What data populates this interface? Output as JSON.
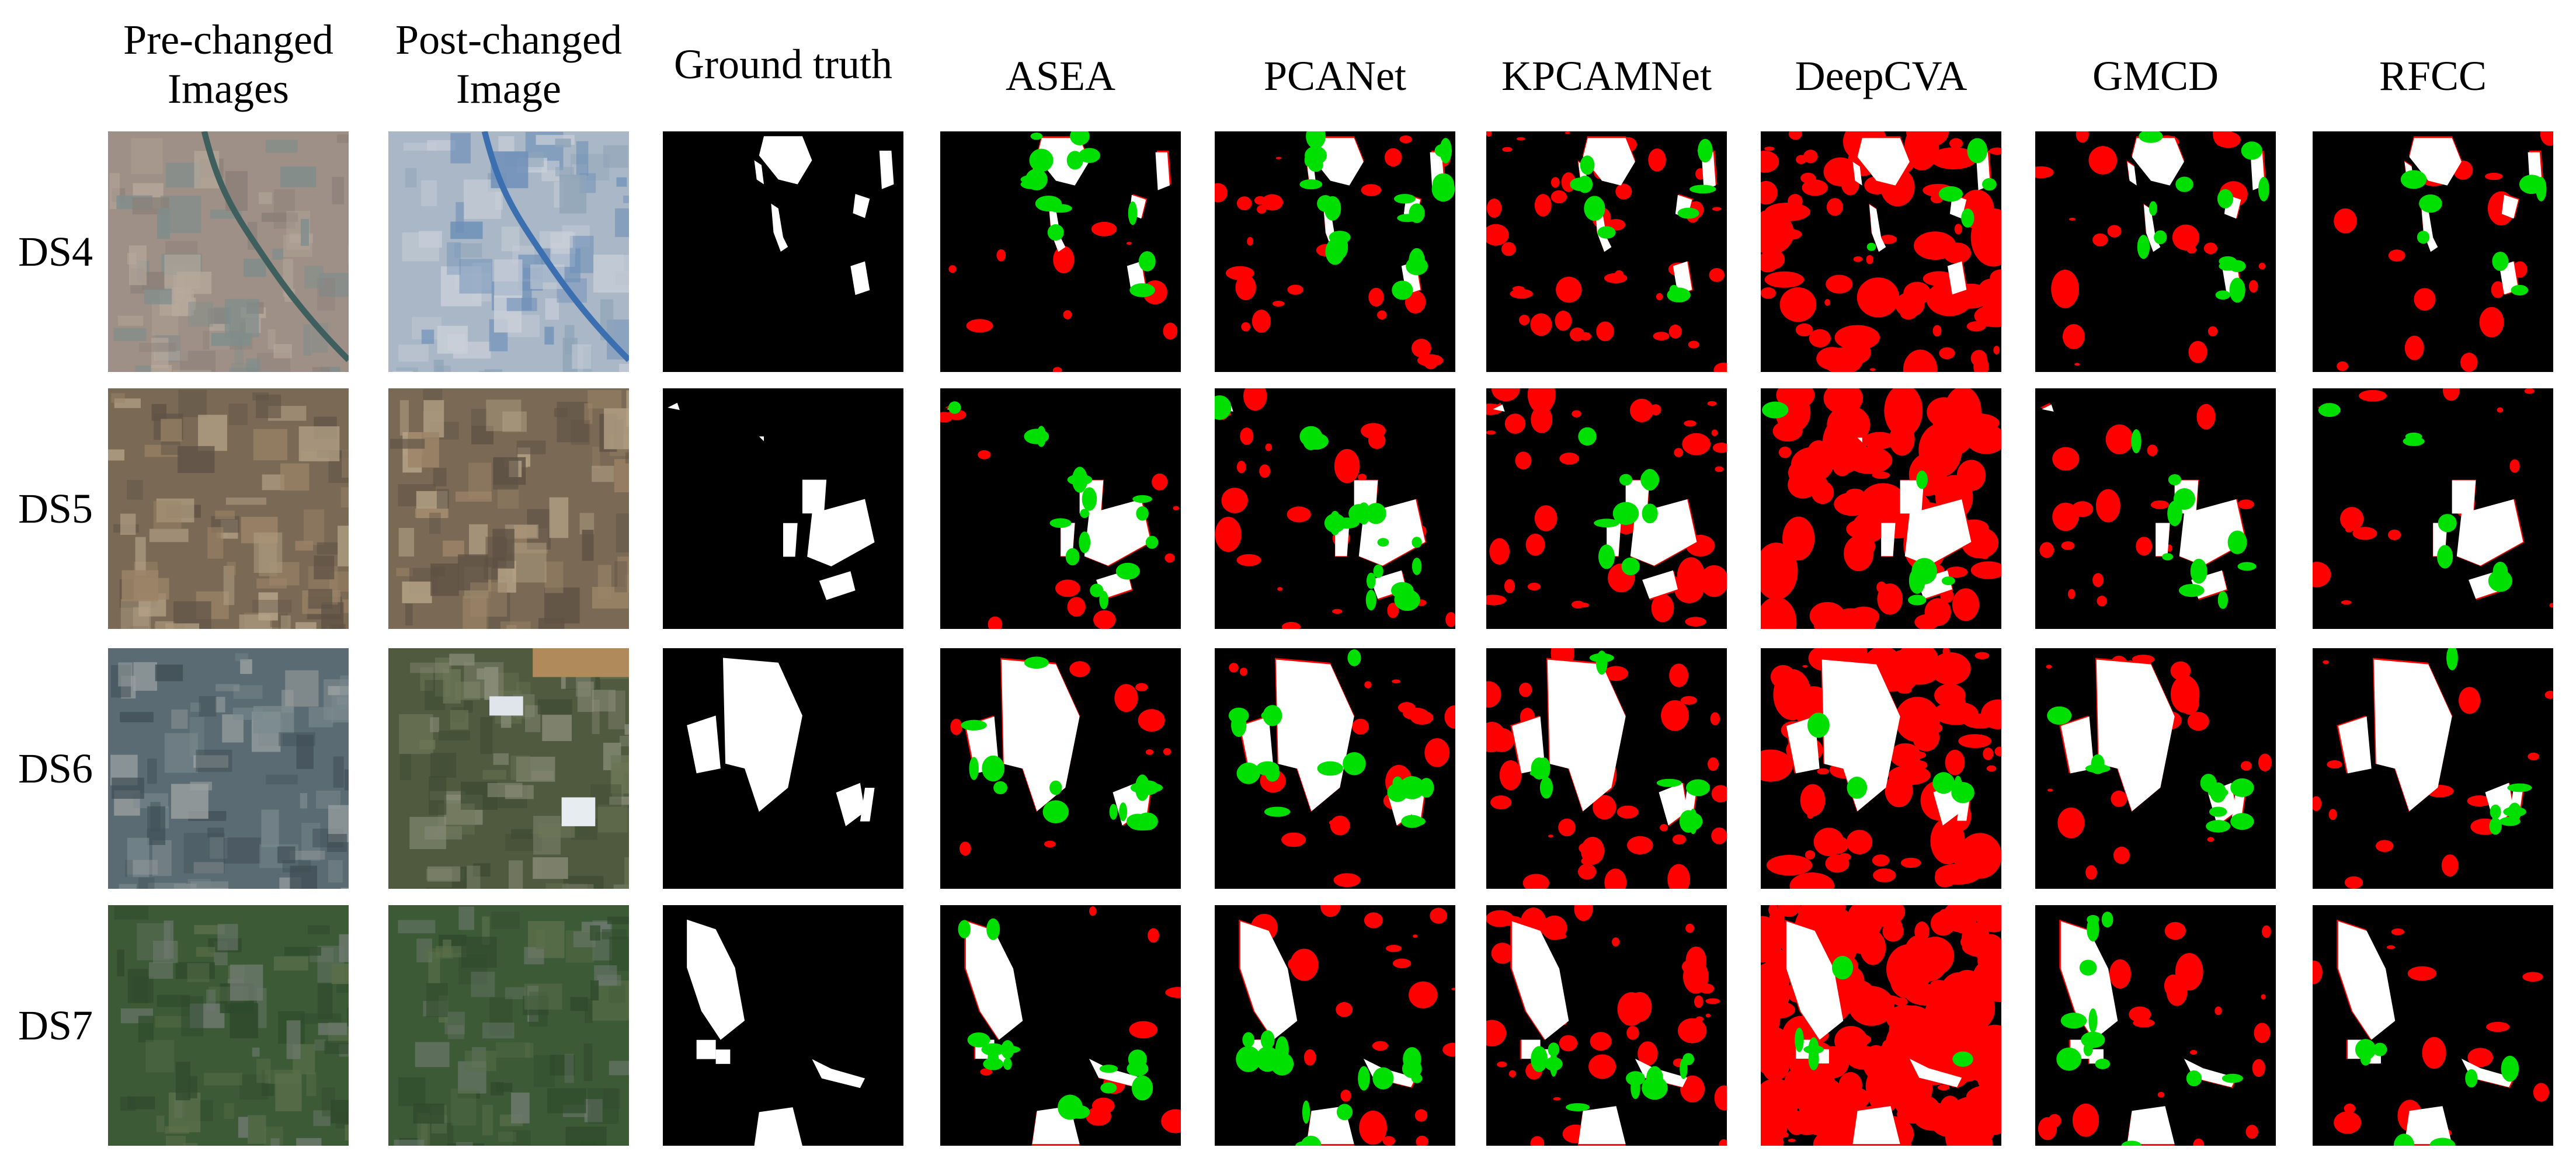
{
  "figure": {
    "column_headers": [
      "Pre-changed Images",
      "Post-changed Image",
      "Ground truth",
      "ASEA",
      "PCANet",
      "KPCAMNet",
      "DeepCVA",
      "GMCD",
      "RFCC"
    ],
    "row_labels": [
      "DS4",
      "DS5",
      "DS6",
      "DS7"
    ],
    "colors": {
      "background": "#000000",
      "unchanged_correct": "#ffffff",
      "false_alarm": "#ff0000",
      "missed_detection": "#00e000"
    }
  }
}
